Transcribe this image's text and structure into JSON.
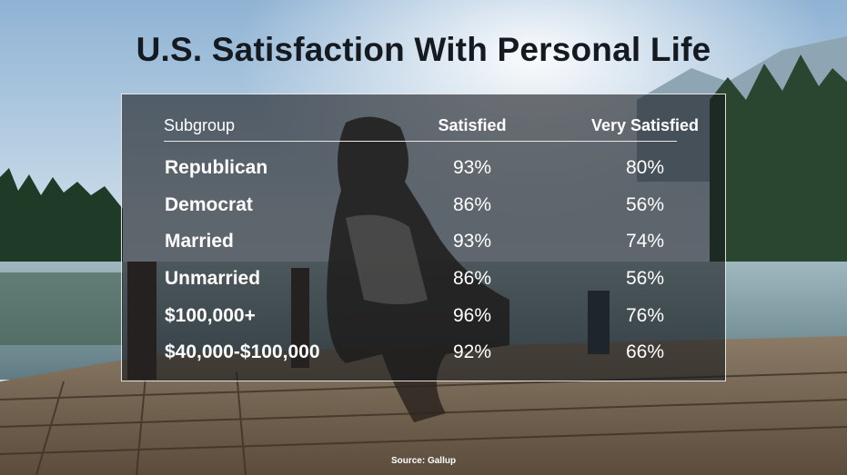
{
  "title": "U.S. Satisfaction With Personal Life",
  "source": "Source: Gallup",
  "colors": {
    "panel": "#16181a",
    "title": "#151a20",
    "text": "#ffffff"
  },
  "chart_data": {
    "type": "table",
    "title": "U.S. Satisfaction With Personal Life",
    "columns": [
      "Subgroup",
      "Satisfied",
      "Very Satisfied"
    ],
    "rows": [
      [
        "Republican",
        "93%",
        "80%"
      ],
      [
        "Democrat",
        "86%",
        "56%"
      ],
      [
        "Married",
        "93%",
        "74%"
      ],
      [
        "Unmarried",
        "86%",
        "56%"
      ],
      [
        "$100,000+",
        "96%",
        "76%"
      ],
      [
        "$40,000-$100,000",
        "92%",
        "66%"
      ]
    ]
  }
}
